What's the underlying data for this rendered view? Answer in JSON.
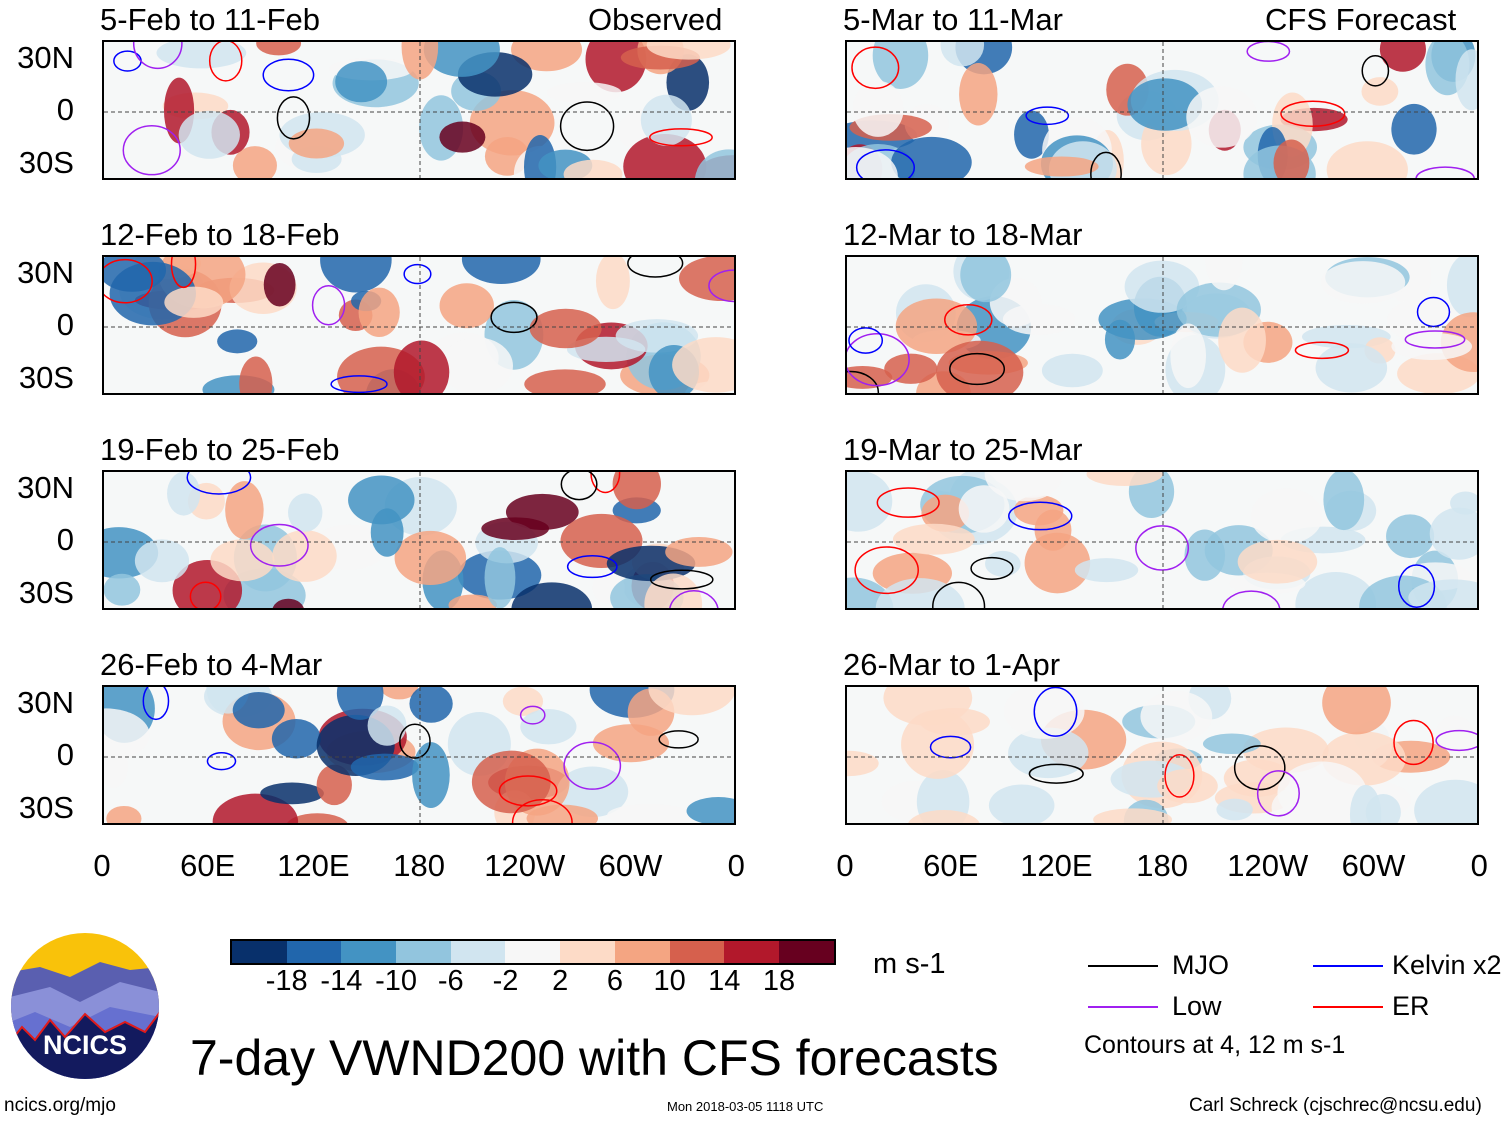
{
  "figure_title": "7-day VWND200 with CFS forecasts",
  "column_headers": {
    "left": "Observed",
    "right": "CFS Forecast"
  },
  "panels_left": [
    {
      "title": "5-Feb to 11-Feb"
    },
    {
      "title": "12-Feb to 18-Feb"
    },
    {
      "title": "19-Feb to 25-Feb"
    },
    {
      "title": "26-Feb to 4-Mar"
    }
  ],
  "panels_right": [
    {
      "title": "5-Mar to 11-Mar"
    },
    {
      "title": "12-Mar to 18-Mar"
    },
    {
      "title": "19-Mar to 25-Mar"
    },
    {
      "title": "26-Mar to 1-Apr"
    }
  ],
  "lat_labels": [
    "30N",
    "0",
    "30S"
  ],
  "lon_labels": [
    "0",
    "60E",
    "120E",
    "180",
    "120W",
    "60W",
    "0"
  ],
  "colorbar": {
    "colors": [
      "#08306b",
      "#2166ac",
      "#4393c3",
      "#92c5de",
      "#d1e5f0",
      "#f7f7f7",
      "#fddbc7",
      "#f4a582",
      "#d6604d",
      "#b2182b",
      "#67001f"
    ],
    "labels": [
      "-18",
      "-14",
      "-10",
      "-6",
      "-2",
      "2",
      "6",
      "10",
      "14",
      "18"
    ],
    "units": "m s-1"
  },
  "legend": {
    "items": [
      {
        "label": "MJO",
        "color": "#000000"
      },
      {
        "label": "Kelvin x2",
        "color": "#0000ff"
      },
      {
        "label": "Low",
        "color": "#a020f0"
      },
      {
        "label": "ER",
        "color": "#ff0000"
      }
    ],
    "note": "Contours at 4, 12 m s-1"
  },
  "logo": {
    "text": "NCICS"
  },
  "footer": {
    "url": "ncics.org/mjo",
    "timestamp": "Mon 2018-03-05 1118 UTC",
    "author": "Carl Schreck (cjschrec@ncsu.edu)"
  }
}
